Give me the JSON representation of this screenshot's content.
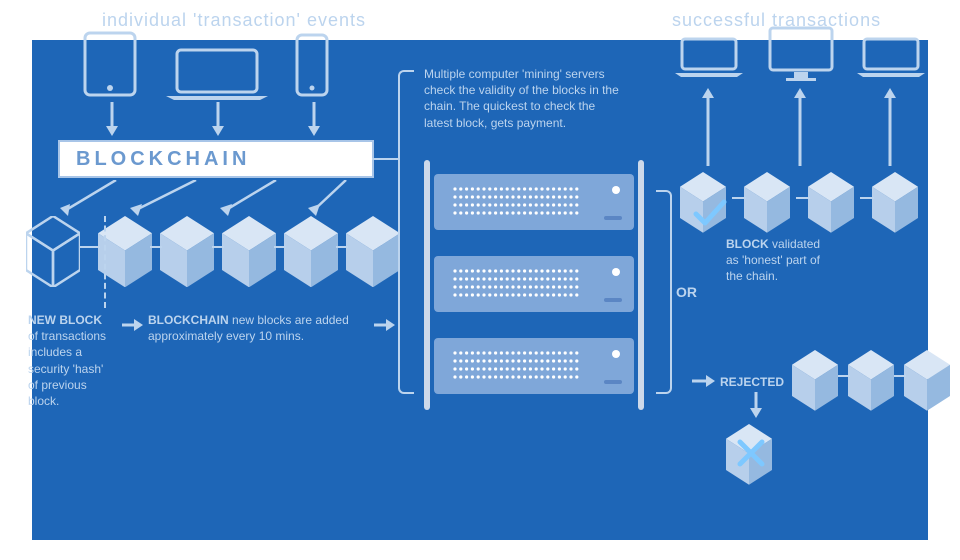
{
  "colors": {
    "bg": "#1e66b7",
    "lightText": "#bcd4ee",
    "outline": "#a8c5e8",
    "cubeLight": "#d9e6f5",
    "cubeMid": "#b7cfeb",
    "cubeDark": "#95b9e0",
    "blockchainText": "#6b99cf",
    "serverBody": "#7fa7d9"
  },
  "headings": {
    "left": "individual 'transaction' events",
    "right": "successful transactions"
  },
  "blockchain_label": "BLOCKCHAIN",
  "texts": {
    "newblock": "NEW BLOCK of transactions includes a security 'hash' of previous block.",
    "newblock_bold": "NEW BLOCK",
    "added": "BLOCKCHAIN new blocks are added approximately every 10 mins.",
    "added_bold": "BLOCKCHAIN",
    "mining": "Multiple computer 'mining' servers check the validity of the blocks in the chain. The quickest to check the latest block, gets payment.",
    "validated": "BLOCK validated as 'honest' part of the chain.",
    "validated_bold": "BLOCK",
    "rejected": "REJECTED",
    "or": "OR"
  },
  "layout": {
    "fontsize_heading": 18,
    "fontsize_body": 12,
    "cube_size": 54,
    "cube_small": 46,
    "server_w": 200,
    "server_h": 56
  }
}
